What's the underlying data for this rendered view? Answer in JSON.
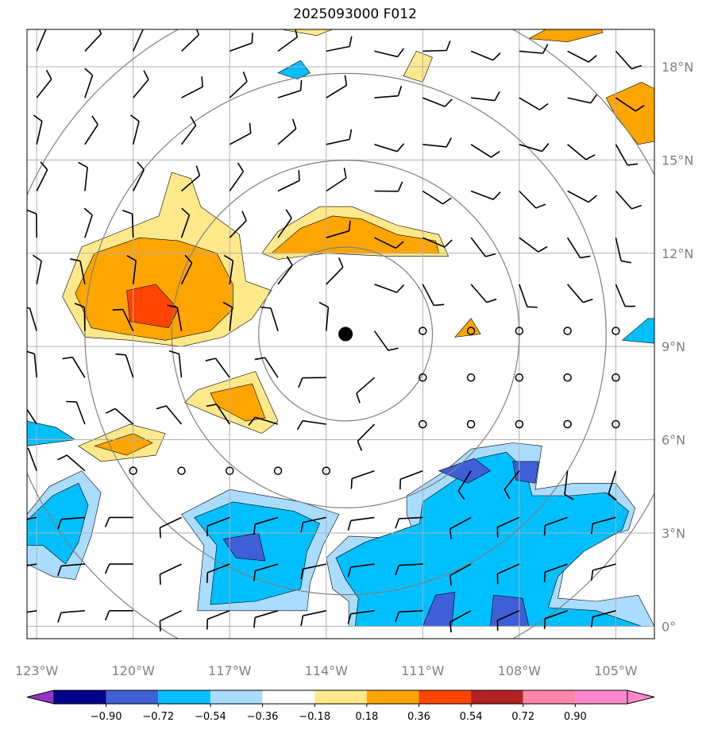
{
  "title": "2025093000 F012",
  "map": {
    "lon_range": [
      -123.3,
      -103.8
    ],
    "lat_range": [
      -0.4,
      19.2
    ],
    "lon_ticks": [
      {
        "value": -123,
        "label": "123°W"
      },
      {
        "value": -120,
        "label": "120°W"
      },
      {
        "value": -117,
        "label": "117°W"
      },
      {
        "value": -114,
        "label": "114°W"
      },
      {
        "value": -111,
        "label": "111°W"
      },
      {
        "value": -108,
        "label": "108°W"
      },
      {
        "value": -105,
        "label": "105°W"
      }
    ],
    "lat_ticks": [
      {
        "value": 18,
        "label": "18°N"
      },
      {
        "value": 15,
        "label": "15°N"
      },
      {
        "value": 12,
        "label": "12°N"
      },
      {
        "value": 9,
        "label": "9°N"
      },
      {
        "value": 6,
        "label": "6°N"
      },
      {
        "value": 3,
        "label": "3°N"
      },
      {
        "value": 0,
        "label": "0°"
      }
    ],
    "center": {
      "lon": -113.4,
      "lat": 9.4
    },
    "range_rings_deg": [
      2.7,
      5.4,
      8.1,
      10.8
    ],
    "colors": {
      "grid": "#b0b0b0",
      "ring": "#808080",
      "contour": "#000000",
      "neg_018": "#aadcff",
      "neg_036": "#00bfff",
      "neg_054": "#3f5fd6",
      "pos_018": "#ffe98a",
      "pos_036": "#ffa500",
      "pos_054": "#ff4500"
    }
  },
  "colorbar": {
    "ticks": [
      "−0.90",
      "−0.72",
      "−0.54",
      "−0.36",
      "−0.18",
      "0.18",
      "0.36",
      "0.54",
      "0.72",
      "0.90"
    ],
    "colors": [
      "#9933cc",
      "#00008b",
      "#3f5fd6",
      "#00bfff",
      "#aadcff",
      "#ffffff",
      "#ffe98a",
      "#ffa500",
      "#ff4500",
      "#b22222",
      "#ff88aa",
      "#ff88cc"
    ]
  }
}
